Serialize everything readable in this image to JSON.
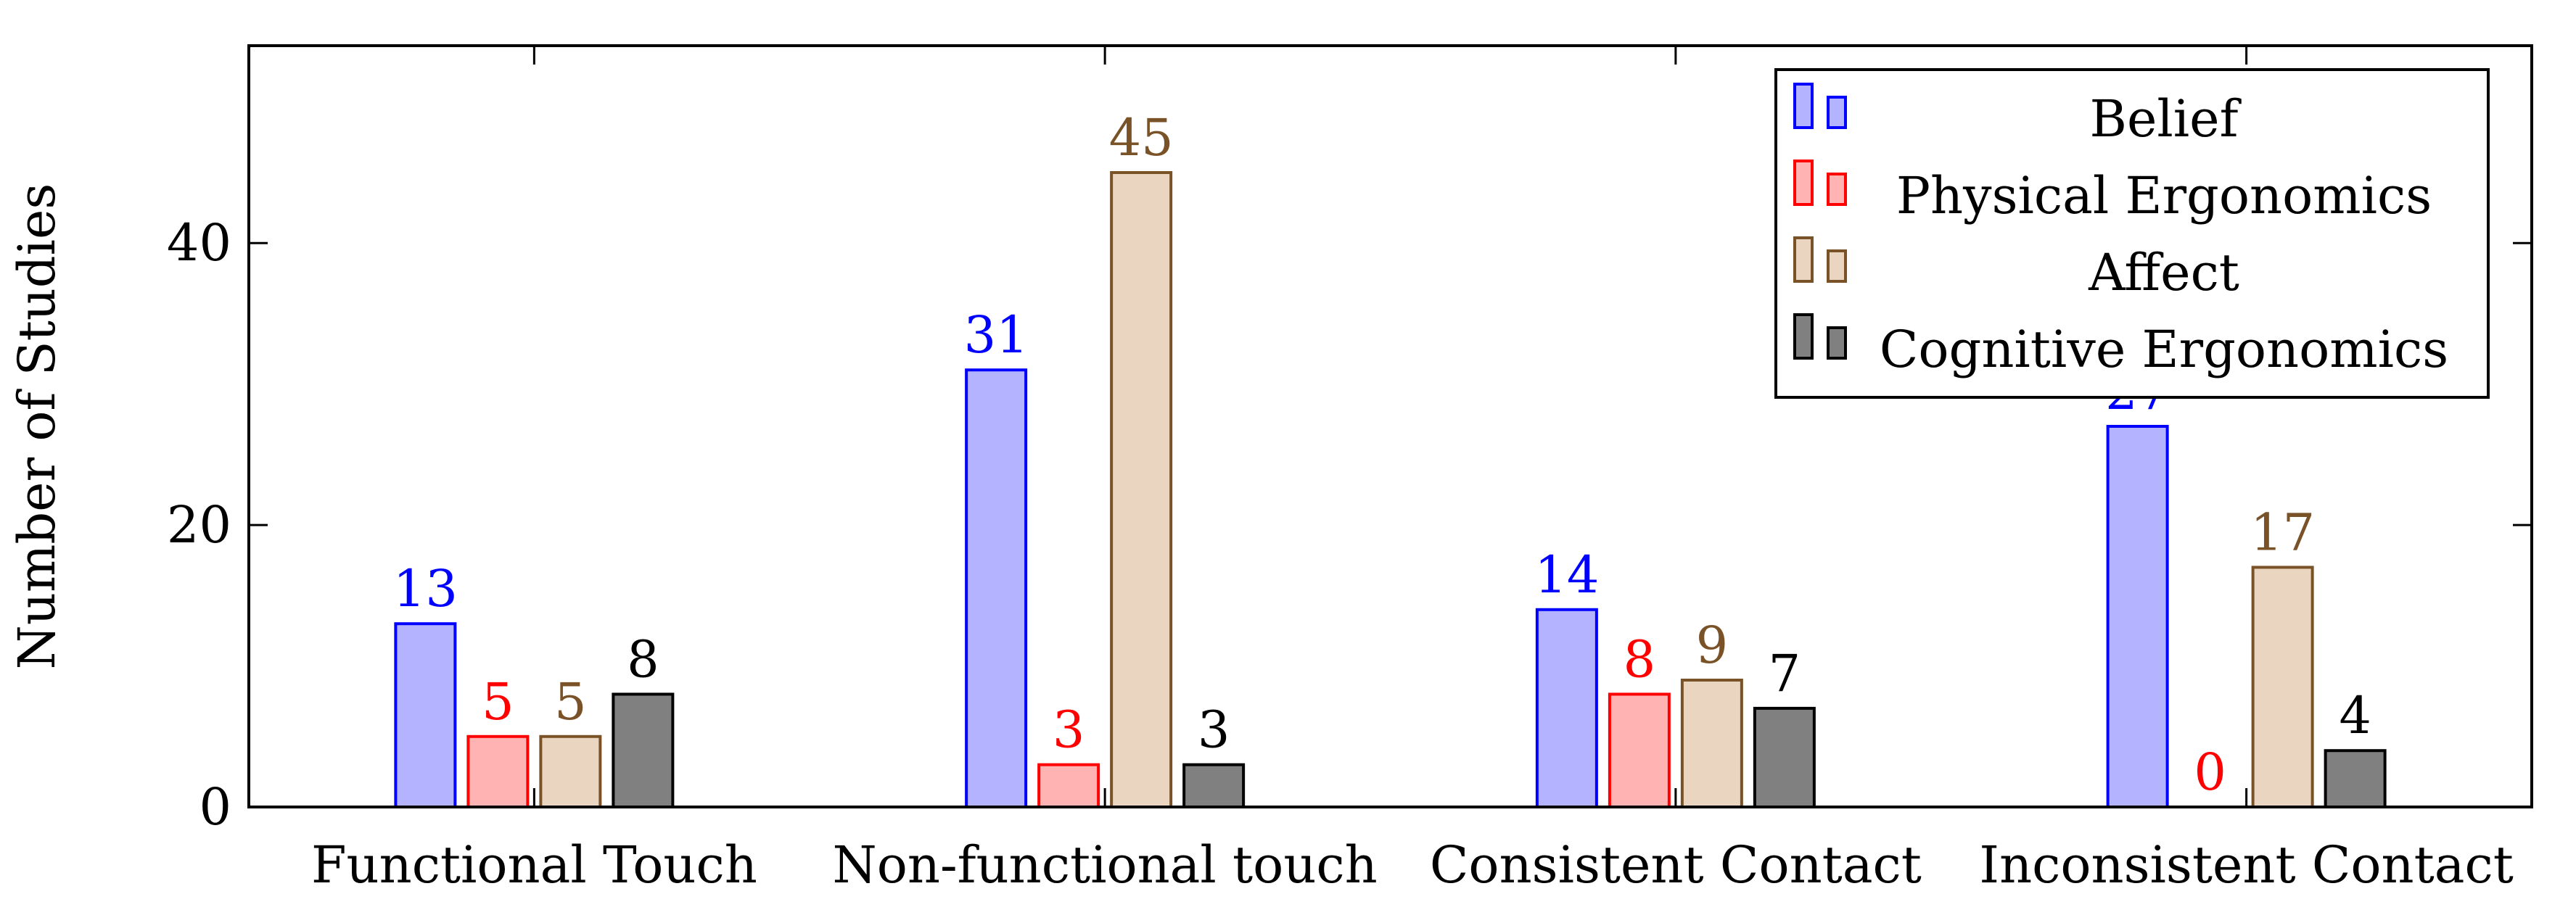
{
  "chart_data": {
    "type": "bar",
    "title": "",
    "xlabel": "",
    "ylabel": "Number of Studies",
    "ylim": [
      0,
      54
    ],
    "yticks": [
      0,
      20,
      40
    ],
    "categories": [
      "Functional Touch",
      "Non-functional touch",
      "Consistent Contact",
      "Inconsistent Contact"
    ],
    "series": [
      {
        "name": "Belief",
        "values": [
          13,
          31,
          14,
          27
        ],
        "fill": "#b3b3ff",
        "stroke": "#0000ff",
        "label_color": "#0000ff"
      },
      {
        "name": "Physical Ergonomics",
        "values": [
          5,
          3,
          8,
          0
        ],
        "fill": "#ffb3b3",
        "stroke": "#ff0000",
        "label_color": "#ff0000"
      },
      {
        "name": "Affect",
        "values": [
          5,
          45,
          9,
          17
        ],
        "fill": "#ead6c0",
        "stroke": "#7a5228",
        "label_color": "#7a5228"
      },
      {
        "name": "Cognitive Ergonomics",
        "values": [
          8,
          3,
          7,
          4
        ],
        "fill": "#808080",
        "stroke": "#000000",
        "label_color": "#000000"
      }
    ],
    "grid": false,
    "legend_position": "top-right"
  }
}
